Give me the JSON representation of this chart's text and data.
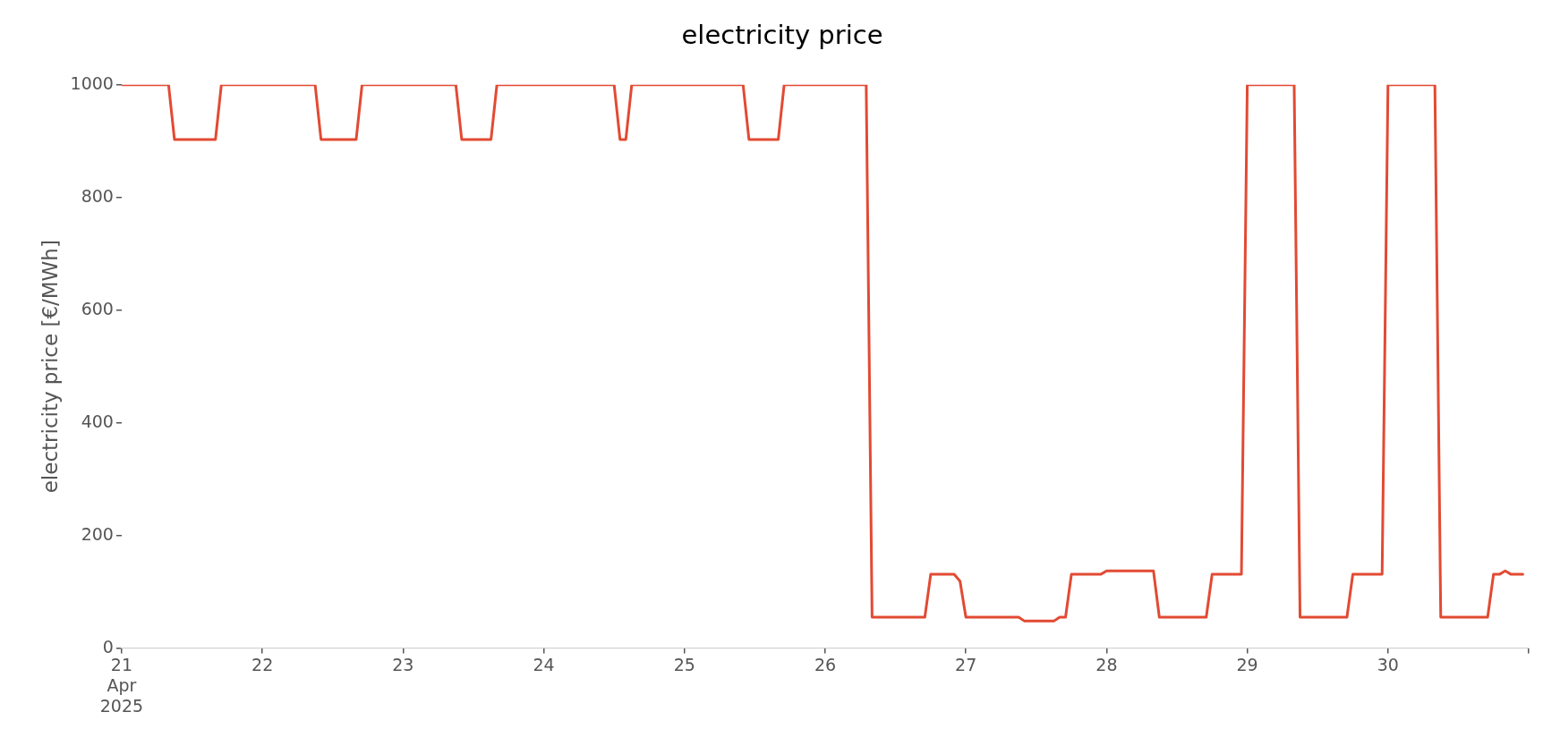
{
  "chart_data": {
    "type": "line",
    "title": "electricity price",
    "ylabel": "electricity price [€/MWh]",
    "x": [
      "2025-04-21T00:00",
      "2025-04-21T08:00",
      "2025-04-21T09:00",
      "2025-04-21T16:00",
      "2025-04-21T17:00",
      "2025-04-22T09:00",
      "2025-04-22T10:00",
      "2025-04-22T16:00",
      "2025-04-22T17:00",
      "2025-04-23T09:00",
      "2025-04-23T10:00",
      "2025-04-23T15:00",
      "2025-04-23T16:00",
      "2025-04-24T12:00",
      "2025-04-24T13:00",
      "2025-04-24T14:00",
      "2025-04-24T15:00",
      "2025-04-25T10:00",
      "2025-04-25T11:00",
      "2025-04-25T16:00",
      "2025-04-25T17:00",
      "2025-04-26T07:00",
      "2025-04-26T08:00",
      "2025-04-26T17:00",
      "2025-04-26T18:00",
      "2025-04-26T22:00",
      "2025-04-26T23:00",
      "2025-04-27T00:00",
      "2025-04-27T09:00",
      "2025-04-27T10:00",
      "2025-04-27T15:00",
      "2025-04-27T16:00",
      "2025-04-27T17:00",
      "2025-04-27T18:00",
      "2025-04-27T23:00",
      "2025-04-28T00:00",
      "2025-04-28T08:00",
      "2025-04-28T09:00",
      "2025-04-28T17:00",
      "2025-04-28T18:00",
      "2025-04-28T23:00",
      "2025-04-29T00:00",
      "2025-04-29T08:00",
      "2025-04-29T09:00",
      "2025-04-29T17:00",
      "2025-04-29T18:00",
      "2025-04-29T23:00",
      "2025-04-30T00:00",
      "2025-04-30T08:00",
      "2025-04-30T09:00",
      "2025-04-30T17:00",
      "2025-04-30T18:00",
      "2025-04-30T19:00",
      "2025-04-30T20:00",
      "2025-04-30T21:00",
      "2025-04-30T23:00"
    ],
    "series": [
      {
        "color": "#e24a33",
        "values": [
          1000,
          1000,
          903,
          903,
          1000,
          1000,
          903,
          903,
          1000,
          1000,
          903,
          903,
          1000,
          1000,
          903,
          903,
          1000,
          1000,
          903,
          903,
          1000,
          1000,
          55,
          55,
          131,
          131,
          119,
          55,
          55,
          48,
          48,
          55,
          55,
          131,
          131,
          137,
          137,
          55,
          55,
          131,
          131,
          1000,
          1000,
          55,
          55,
          131,
          131,
          1000,
          1000,
          55,
          55,
          131,
          131,
          137,
          131,
          131
        ]
      }
    ],
    "xlim": [
      "2025-04-21T00:00",
      "2025-05-01T00:00"
    ],
    "xticks": [
      {
        "value": "2025-04-21",
        "label": "21\nApr\n2025"
      },
      {
        "value": "2025-04-22",
        "label": "22"
      },
      {
        "value": "2025-04-23",
        "label": "23"
      },
      {
        "value": "2025-04-24",
        "label": "24"
      },
      {
        "value": "2025-04-25",
        "label": "25"
      },
      {
        "value": "2025-04-26",
        "label": "26"
      },
      {
        "value": "2025-04-27",
        "label": "27"
      },
      {
        "value": "2025-04-28",
        "label": "28"
      },
      {
        "value": "2025-04-29",
        "label": "29"
      },
      {
        "value": "2025-04-30",
        "label": "30"
      },
      {
        "value": "2025-05-01",
        "label": null
      }
    ],
    "ylim": [
      0,
      1000
    ],
    "yticks": [
      0,
      200,
      400,
      600,
      800,
      1000
    ],
    "grid": false,
    "legend": false,
    "marker": "none",
    "line_style": "solid"
  }
}
